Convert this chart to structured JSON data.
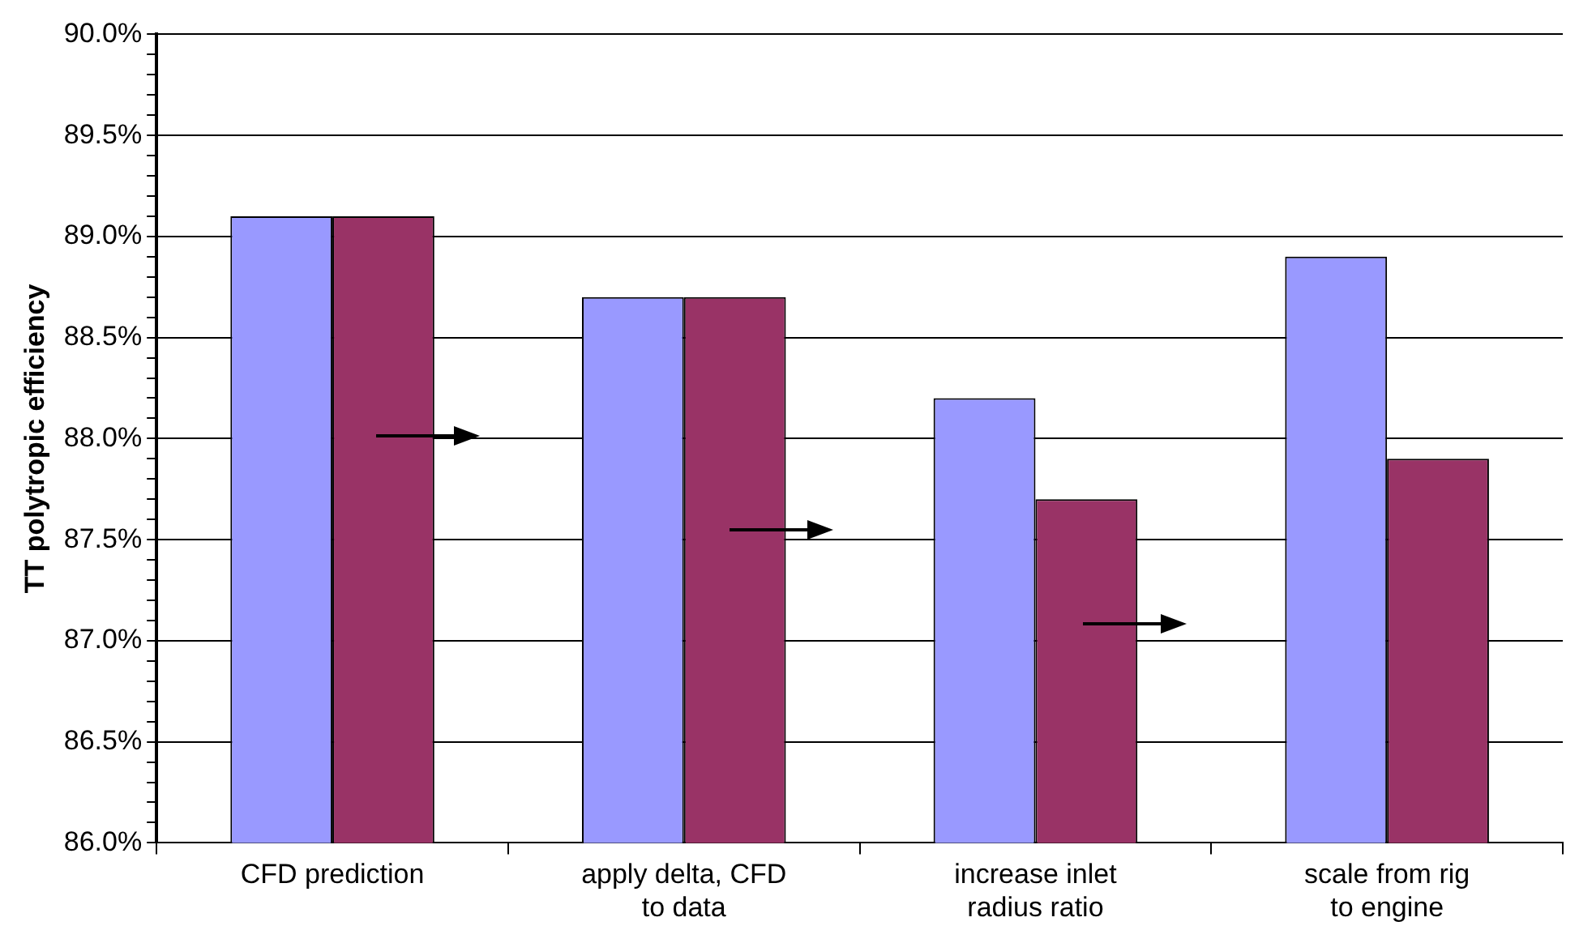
{
  "chart_data": {
    "type": "bar",
    "ylabel": "TT polytropic efficiency",
    "categories": [
      "CFD prediction",
      "apply delta, CFD to data",
      "increase inlet radius ratio",
      "scale from rig to engine"
    ],
    "series": [
      {
        "color": "#9999ff",
        "values": [
          89.1,
          88.7,
          88.2,
          88.9
        ]
      },
      {
        "color": "#993366",
        "values": [
          89.1,
          88.7,
          87.7,
          87.9
        ]
      }
    ],
    "ylim": [
      86,
      90
    ],
    "yticks": [
      {
        "value": 86,
        "label": "86.0%"
      },
      {
        "value": 86.1,
        "label": null
      },
      {
        "value": 86.2,
        "label": null
      },
      {
        "value": 86.3,
        "label": null
      },
      {
        "value": 86.4,
        "label": null
      },
      {
        "value": 86.5,
        "label": "86.5%"
      },
      {
        "value": 86.6,
        "label": null
      },
      {
        "value": 86.7,
        "label": null
      },
      {
        "value": 86.8,
        "label": null
      },
      {
        "value": 86.9,
        "label": null
      },
      {
        "value": 87,
        "label": "87.0%"
      },
      {
        "value": 87.1,
        "label": null
      },
      {
        "value": 87.2,
        "label": null
      },
      {
        "value": 87.3,
        "label": null
      },
      {
        "value": 87.4,
        "label": null
      },
      {
        "value": 87.5,
        "label": "87.5%"
      },
      {
        "value": 87.6,
        "label": null
      },
      {
        "value": 87.7,
        "label": null
      },
      {
        "value": 87.8,
        "label": null
      },
      {
        "value": 87.9,
        "label": null
      },
      {
        "value": 88,
        "label": "88.0%"
      },
      {
        "value": 88.1,
        "label": null
      },
      {
        "value": 88.2,
        "label": null
      },
      {
        "value": 88.3,
        "label": null
      },
      {
        "value": 88.4,
        "label": null
      },
      {
        "value": 88.5,
        "label": "88.5%"
      },
      {
        "value": 88.6,
        "label": null
      },
      {
        "value": 88.7,
        "label": null
      },
      {
        "value": 88.8,
        "label": null
      },
      {
        "value": 88.9,
        "label": null
      },
      {
        "value": 89,
        "label": "89.0%"
      },
      {
        "value": 89.1,
        "label": null
      },
      {
        "value": 89.2,
        "label": null
      },
      {
        "value": 89.3,
        "label": null
      },
      {
        "value": 89.4,
        "label": null
      },
      {
        "value": 89.5,
        "label": "89.5%"
      },
      {
        "value": 89.6,
        "label": null
      },
      {
        "value": 89.7,
        "label": null
      },
      {
        "value": 89.8,
        "label": null
      },
      {
        "value": 89.9,
        "label": null
      },
      {
        "value": 90,
        "label": "90.0%"
      }
    ],
    "grid": "y"
  }
}
